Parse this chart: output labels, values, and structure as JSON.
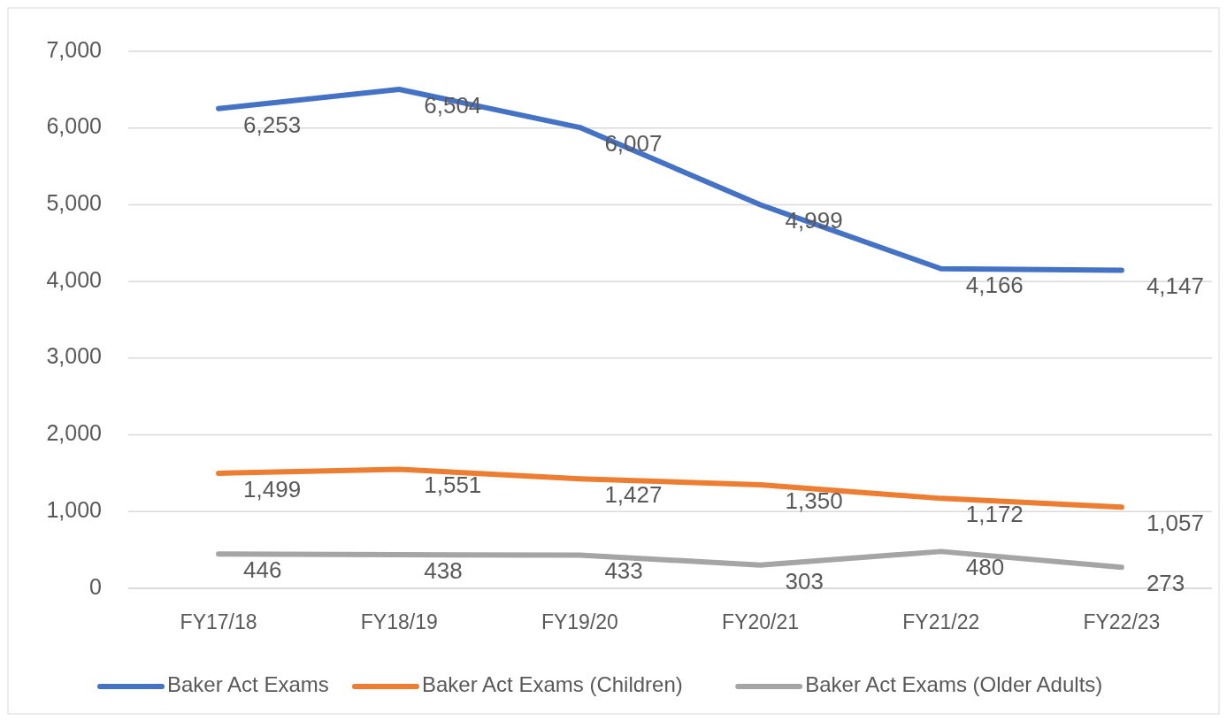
{
  "chart_data": {
    "type": "line",
    "categories": [
      "FY17/18",
      "FY18/19",
      "FY19/20",
      "FY20/21",
      "FY21/22",
      "FY22/23"
    ],
    "series": [
      {
        "name": "Baker Act Exams",
        "color": "#4472c4",
        "values": [
          6253,
          6504,
          6007,
          4999,
          4166,
          4147
        ],
        "value_labels": [
          "6,253",
          "6,504",
          "6,007",
          "4,999",
          "4,166",
          "4,147"
        ]
      },
      {
        "name": "Baker Act Exams (Children)",
        "color": "#ed7d31",
        "values": [
          1499,
          1551,
          1427,
          1350,
          1172,
          1057
        ],
        "value_labels": [
          "1,499",
          "1,551",
          "1,427",
          "1,350",
          "1,172",
          "1,057"
        ]
      },
      {
        "name": "Baker Act Exams (Older Adults)",
        "color": "#a5a5a5",
        "values": [
          446,
          438,
          433,
          303,
          480,
          273
        ],
        "value_labels": [
          "446",
          "438",
          "433",
          "303",
          "480",
          "273"
        ]
      }
    ],
    "ylim": [
      0,
      7000
    ],
    "yticks": [
      {
        "value": 0,
        "label": "0"
      },
      {
        "value": 1000,
        "label": "1,000"
      },
      {
        "value": 2000,
        "label": "2,000"
      },
      {
        "value": 3000,
        "label": "3,000"
      },
      {
        "value": 4000,
        "label": "4,000"
      },
      {
        "value": 5000,
        "label": "5,000"
      },
      {
        "value": 6000,
        "label": "6,000"
      },
      {
        "value": 7000,
        "label": "7,000"
      }
    ],
    "grid": "y",
    "legend": "bottom",
    "marker": "none",
    "line_style": "solid"
  }
}
